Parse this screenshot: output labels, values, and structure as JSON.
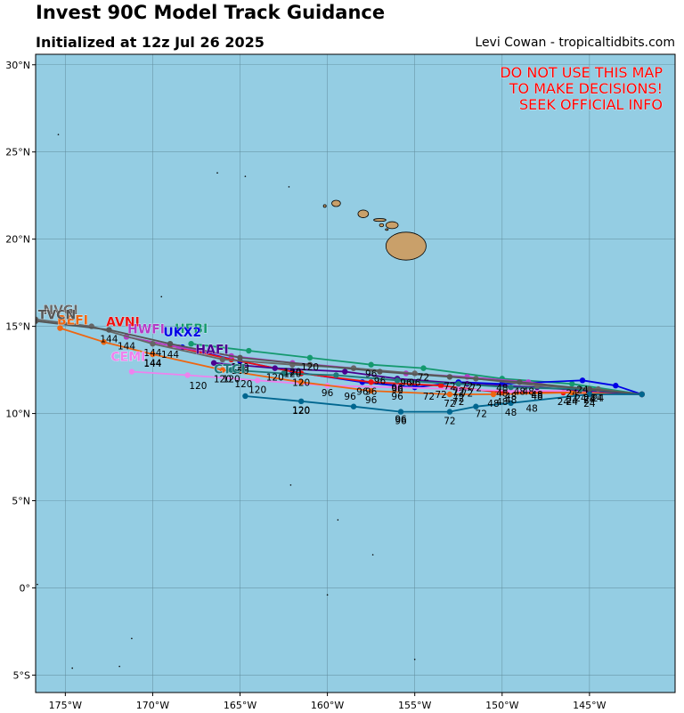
{
  "header": {
    "title": "Invest 90C Model Track Guidance",
    "subtitle": "Initialized at 12z Jul 26 2025",
    "credit": "Levi Cowan - tropicaltidbits.com"
  },
  "map": {
    "extent": {
      "lon": [
        -176.7,
        -140.1
      ],
      "lat": [
        -6.0,
        30.6
      ]
    },
    "ocean_color": "#94cde3",
    "land_color": "#c9a06a",
    "lon_ticks": [
      -175,
      -170,
      -165,
      -160,
      -155,
      -150,
      -145
    ],
    "lon_labels": [
      "175°W",
      "170°W",
      "165°W",
      "160°W",
      "155°W",
      "150°W",
      "145°W"
    ],
    "lat_ticks": [
      30,
      25,
      20,
      15,
      10,
      5,
      0,
      -5
    ],
    "lat_labels": [
      "30°N",
      "25°N",
      "20°N",
      "15°N",
      "10°N",
      "5°N",
      "0°",
      "5°S"
    ],
    "warning": [
      "DO NOT USE THIS MAP",
      "TO MAKE DECISIONS!",
      "SEEK OFFICIAL INFO"
    ],
    "warning_color": "#ff0000",
    "islands": [
      {
        "name": "Hawaii",
        "lon": -155.5,
        "lat": 19.6,
        "rx": 1.15,
        "ry": 0.8
      },
      {
        "name": "Maui",
        "lon": -156.3,
        "lat": 20.8,
        "rx": 0.35,
        "ry": 0.2
      },
      {
        "name": "Molokai",
        "lon": -157.0,
        "lat": 21.1,
        "rx": 0.35,
        "ry": 0.08
      },
      {
        "name": "Oahu",
        "lon": -157.95,
        "lat": 21.45,
        "rx": 0.3,
        "ry": 0.22
      },
      {
        "name": "Kauai",
        "lon": -159.5,
        "lat": 22.05,
        "rx": 0.25,
        "ry": 0.18
      },
      {
        "name": "Niihau",
        "lon": -160.15,
        "lat": 21.9,
        "rx": 0.08,
        "ry": 0.08
      },
      {
        "name": "Lanai",
        "lon": -156.9,
        "lat": 20.8,
        "rx": 0.12,
        "ry": 0.09
      },
      {
        "name": "Kahoolawe",
        "lon": -156.6,
        "lat": 20.55,
        "rx": 0.08,
        "ry": 0.05
      }
    ],
    "atolls": [
      {
        "lon": -159.4,
        "lat": 3.9
      },
      {
        "lon": -157.4,
        "lat": 1.9
      },
      {
        "lon": -162.1,
        "lat": 5.9
      },
      {
        "lon": -171.2,
        "lat": -2.9
      },
      {
        "lon": -174.6,
        "lat": -4.6
      },
      {
        "lon": -155.0,
        "lat": -4.1
      },
      {
        "lon": -169.5,
        "lat": 16.7
      },
      {
        "lon": -162.2,
        "lat": 23.0
      },
      {
        "lon": -164.7,
        "lat": 23.6
      },
      {
        "lon": -166.3,
        "lat": 23.8
      },
      {
        "lon": -176.6,
        "lat": 0.2
      },
      {
        "lon": -175.4,
        "lat": 26.0
      },
      {
        "lon": -160.0,
        "lat": -0.4
      },
      {
        "lon": -171.9,
        "lat": -4.5
      }
    ]
  },
  "chart_data": {
    "type": "scatter",
    "title": "Invest 90C Model Track Guidance",
    "series": [
      {
        "name": "HFBI",
        "color": "#14996e",
        "points": [
          [
            -142.0,
            11.1
          ],
          [
            -146.0,
            11.7
          ],
          [
            -150.0,
            12.0
          ],
          [
            -154.5,
            12.6
          ],
          [
            -157.5,
            12.8
          ],
          [
            -161.0,
            13.2
          ],
          [
            -164.5,
            13.6
          ],
          [
            -167.8,
            14.0
          ]
        ],
        "hours": [
          "",
          "24",
          "48",
          "72",
          "96",
          "120",
          "",
          ""
        ],
        "label": "HFBI"
      },
      {
        "name": "UKX2",
        "color": "#0000e6",
        "points": [
          [
            -142.0,
            11.1
          ],
          [
            -143.5,
            11.6
          ],
          [
            -145.4,
            11.9
          ],
          [
            -150.0,
            11.7
          ],
          [
            -152.5,
            11.8
          ],
          [
            -155.0,
            11.5
          ],
          [
            -158.0,
            11.8
          ],
          [
            -162.0,
            12.4
          ],
          [
            -165.0,
            13.0
          ],
          [
            -168.3,
            13.8
          ]
        ],
        "hours": [
          "",
          "",
          "24",
          "48",
          "72",
          "",
          "96",
          "",
          "120",
          ""
        ],
        "label": "UKX2"
      },
      {
        "name": "AVNI",
        "color": "#ee1111",
        "points": [
          [
            -142.0,
            11.1
          ],
          [
            -146.5,
            11.2
          ],
          [
            -150.0,
            11.2
          ],
          [
            -153.5,
            11.6
          ],
          [
            -157.5,
            11.8
          ],
          [
            -161.5,
            12.3
          ],
          [
            -165.5,
            13.1
          ],
          [
            -169.0,
            13.9
          ],
          [
            -171.5,
            14.4
          ]
        ],
        "hours": [
          "",
          "24",
          "48",
          "72",
          "96",
          "120",
          "",
          "144",
          ""
        ],
        "label": "AVNI"
      },
      {
        "name": "CEMI",
        "color": "#ee82ee",
        "points": [
          [
            -142.0,
            11.1
          ],
          [
            -146.0,
            11.3
          ],
          [
            -149.5,
            11.3
          ],
          [
            -152.5,
            11.4
          ],
          [
            -156.0,
            11.5
          ],
          [
            -160.0,
            11.6
          ],
          [
            -164.0,
            11.9
          ],
          [
            -168.0,
            12.2
          ],
          [
            -171.2,
            12.4
          ]
        ],
        "hours": [
          "",
          "24",
          "48",
          "72",
          "96",
          "",
          "120",
          "",
          ""
        ],
        "label": "CEMI"
      },
      {
        "name": "BEFI",
        "color": "#ee6611",
        "points": [
          [
            -142.0,
            11.1
          ],
          [
            -146.0,
            11.2
          ],
          [
            -150.5,
            11.1
          ],
          [
            -153.0,
            11.1
          ],
          [
            -157.5,
            11.3
          ],
          [
            -161.5,
            11.8
          ],
          [
            -166.0,
            12.5
          ],
          [
            -170.0,
            13.4
          ],
          [
            -172.8,
            14.1
          ],
          [
            -175.3,
            14.9
          ]
        ],
        "hours": [
          "",
          "24",
          "48",
          "72",
          "96",
          "",
          "120",
          "144",
          "",
          ""
        ],
        "label": "BEFI"
      },
      {
        "name": "HWFI",
        "color": "#b43cc8",
        "points": [
          [
            -142.0,
            11.1
          ],
          [
            -145.0,
            11.3
          ],
          [
            -148.5,
            11.8
          ],
          [
            -152.0,
            12.1
          ],
          [
            -155.5,
            12.3
          ],
          [
            -158.5,
            12.6
          ],
          [
            -162.0,
            12.9
          ],
          [
            -165.5,
            13.3
          ],
          [
            -168.5,
            13.8
          ],
          [
            -171.5,
            14.4
          ]
        ],
        "hours": [
          "",
          "24",
          "48",
          "72",
          "96",
          "",
          "120",
          "",
          "",
          "144"
        ],
        "label": "HWFI"
      },
      {
        "name": "HAFI",
        "color": "#4a0090",
        "points": [
          [
            -142.0,
            11.1
          ],
          [
            -145.0,
            11.3
          ],
          [
            -148.0,
            11.5
          ],
          [
            -152.0,
            11.7
          ],
          [
            -156.0,
            12.0
          ],
          [
            -159.0,
            12.4
          ],
          [
            -163.0,
            12.6
          ],
          [
            -166.5,
            12.9
          ]
        ],
        "hours": [
          "",
          "24",
          "48",
          "72",
          "96",
          "",
          "120",
          ""
        ],
        "label": "HAFI"
      },
      {
        "name": "CTCI",
        "color": "#1f7a7a",
        "points": [
          [
            -142.0,
            11.1
          ],
          [
            -145.5,
            11.4
          ],
          [
            -149.5,
            11.5
          ],
          [
            -152.5,
            11.7
          ],
          [
            -156.0,
            11.9
          ],
          [
            -159.5,
            12.2
          ],
          [
            -162.5,
            12.3
          ],
          [
            -165.5,
            12.5
          ]
        ],
        "hours": [
          "",
          "24",
          "48",
          "72",
          "96",
          "",
          "",
          "120"
        ],
        "label": "CTCI"
      },
      {
        "name": "NVGI",
        "color": "#666666",
        "points": [
          [
            -142.0,
            11.1
          ],
          [
            -144.5,
            11.4
          ],
          [
            -148.0,
            11.6
          ],
          [
            -151.5,
            12.0
          ],
          [
            -155.0,
            12.3
          ],
          [
            -158.5,
            12.6
          ],
          [
            -162.0,
            12.8
          ],
          [
            -166.0,
            13.1
          ],
          [
            -170.0,
            14.0
          ],
          [
            -173.5,
            15.0
          ],
          [
            -176.7,
            15.4
          ]
        ],
        "hours": [
          "",
          "24",
          "48",
          "72",
          "96",
          "",
          "120",
          "",
          "144",
          "",
          ""
        ],
        "label": "NVGI"
      },
      {
        "name": "TVCN",
        "color": "#555555",
        "points": [
          [
            -142.0,
            11.1
          ],
          [
            -145.0,
            11.4
          ],
          [
            -149.0,
            11.8
          ],
          [
            -153.0,
            12.1
          ],
          [
            -157.0,
            12.4
          ],
          [
            -161.0,
            12.8
          ],
          [
            -165.0,
            13.2
          ],
          [
            -169.0,
            14.0
          ],
          [
            -172.5,
            14.8
          ],
          [
            -176.7,
            15.3
          ]
        ],
        "hours": [
          "",
          "24",
          "48",
          "72",
          "96",
          "",
          "120",
          "",
          "144",
          ""
        ],
        "label": "TVCN"
      },
      {
        "name": "COAMPS",
        "color": "#00668f",
        "points": [
          [
            -142.0,
            11.1
          ],
          [
            -145.0,
            11.1
          ],
          [
            -149.5,
            10.6
          ],
          [
            -151.5,
            10.4
          ],
          [
            -153.0,
            10.1
          ],
          [
            -155.8,
            10.1
          ],
          [
            -158.5,
            10.4
          ],
          [
            -161.5,
            10.7
          ],
          [
            -164.7,
            11.0
          ]
        ],
        "hours": [
          "",
          "24",
          "48",
          "",
          "72",
          "96",
          "",
          "120",
          ""
        ],
        "label": ""
      }
    ],
    "hour_labels_extra": [
      {
        "text": "48",
        "lon": -148.3,
        "lat": 10.1
      },
      {
        "text": "72",
        "lon": -151.2,
        "lat": 9.8
      },
      {
        "text": "96",
        "lon": -155.8,
        "lat": 9.5
      },
      {
        "text": "120",
        "lon": -161.5,
        "lat": 10.0
      },
      {
        "text": "96",
        "lon": -158.7,
        "lat": 10.8
      },
      {
        "text": "72",
        "lon": -152.5,
        "lat": 10.5
      },
      {
        "text": "120",
        "lon": -164.8,
        "lat": 11.5
      },
      {
        "text": "144",
        "lon": -170.0,
        "lat": 12.7
      },
      {
        "text": "120",
        "lon": -167.4,
        "lat": 11.4
      },
      {
        "text": "96",
        "lon": -160.0,
        "lat": 11.0
      },
      {
        "text": "72",
        "lon": -154.2,
        "lat": 10.8
      },
      {
        "text": "24",
        "lon": -144.6,
        "lat": 10.7
      }
    ]
  }
}
